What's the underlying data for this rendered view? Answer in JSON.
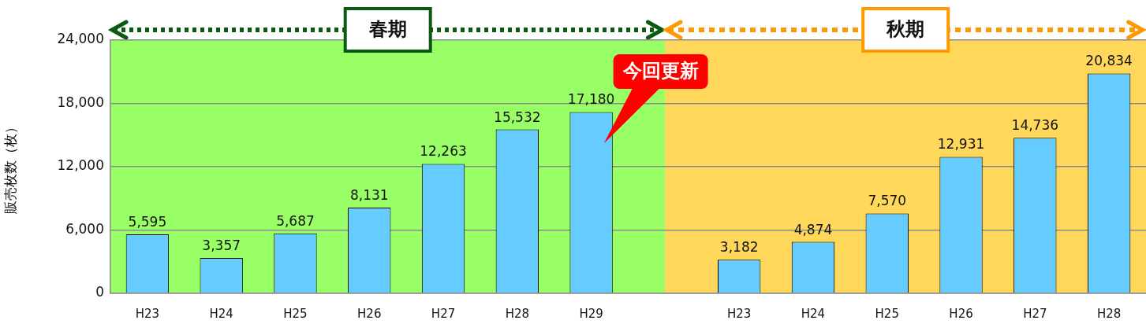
{
  "chart_data": {
    "type": "bar",
    "ylabel": "販売枚数（枚）",
    "categories": [
      "H23",
      "H24",
      "H25",
      "H26",
      "H27",
      "H28",
      "H29",
      null,
      "H23",
      "H24",
      "H25",
      "H26",
      "H27",
      "H28"
    ],
    "values": [
      5595,
      3357,
      5687,
      8131,
      12263,
      15532,
      17180,
      null,
      3182,
      4874,
      7570,
      12931,
      14736,
      20834
    ],
    "value_labels": [
      "5,595",
      "3,357",
      "5,687",
      "8,131",
      "12,263",
      "15,532",
      "17,180",
      null,
      "3,182",
      "4,874",
      "7,570",
      "12,931",
      "14,736",
      "20,834"
    ],
    "color": "#66ccff",
    "ylim": [
      0,
      24000
    ],
    "yticks": [
      {
        "value": 0,
        "label": "0"
      },
      {
        "value": 6000,
        "label": "6,000"
      },
      {
        "value": 12000,
        "label": "12,000"
      },
      {
        "value": 18000,
        "label": "18,000"
      },
      {
        "value": 24000,
        "label": "24,000"
      }
    ],
    "grid": "y",
    "annotations": [
      "春期",
      "秋期",
      {
        "text": "今回更新",
        "x": "H29",
        "y": 17180
      }
    ]
  }
}
